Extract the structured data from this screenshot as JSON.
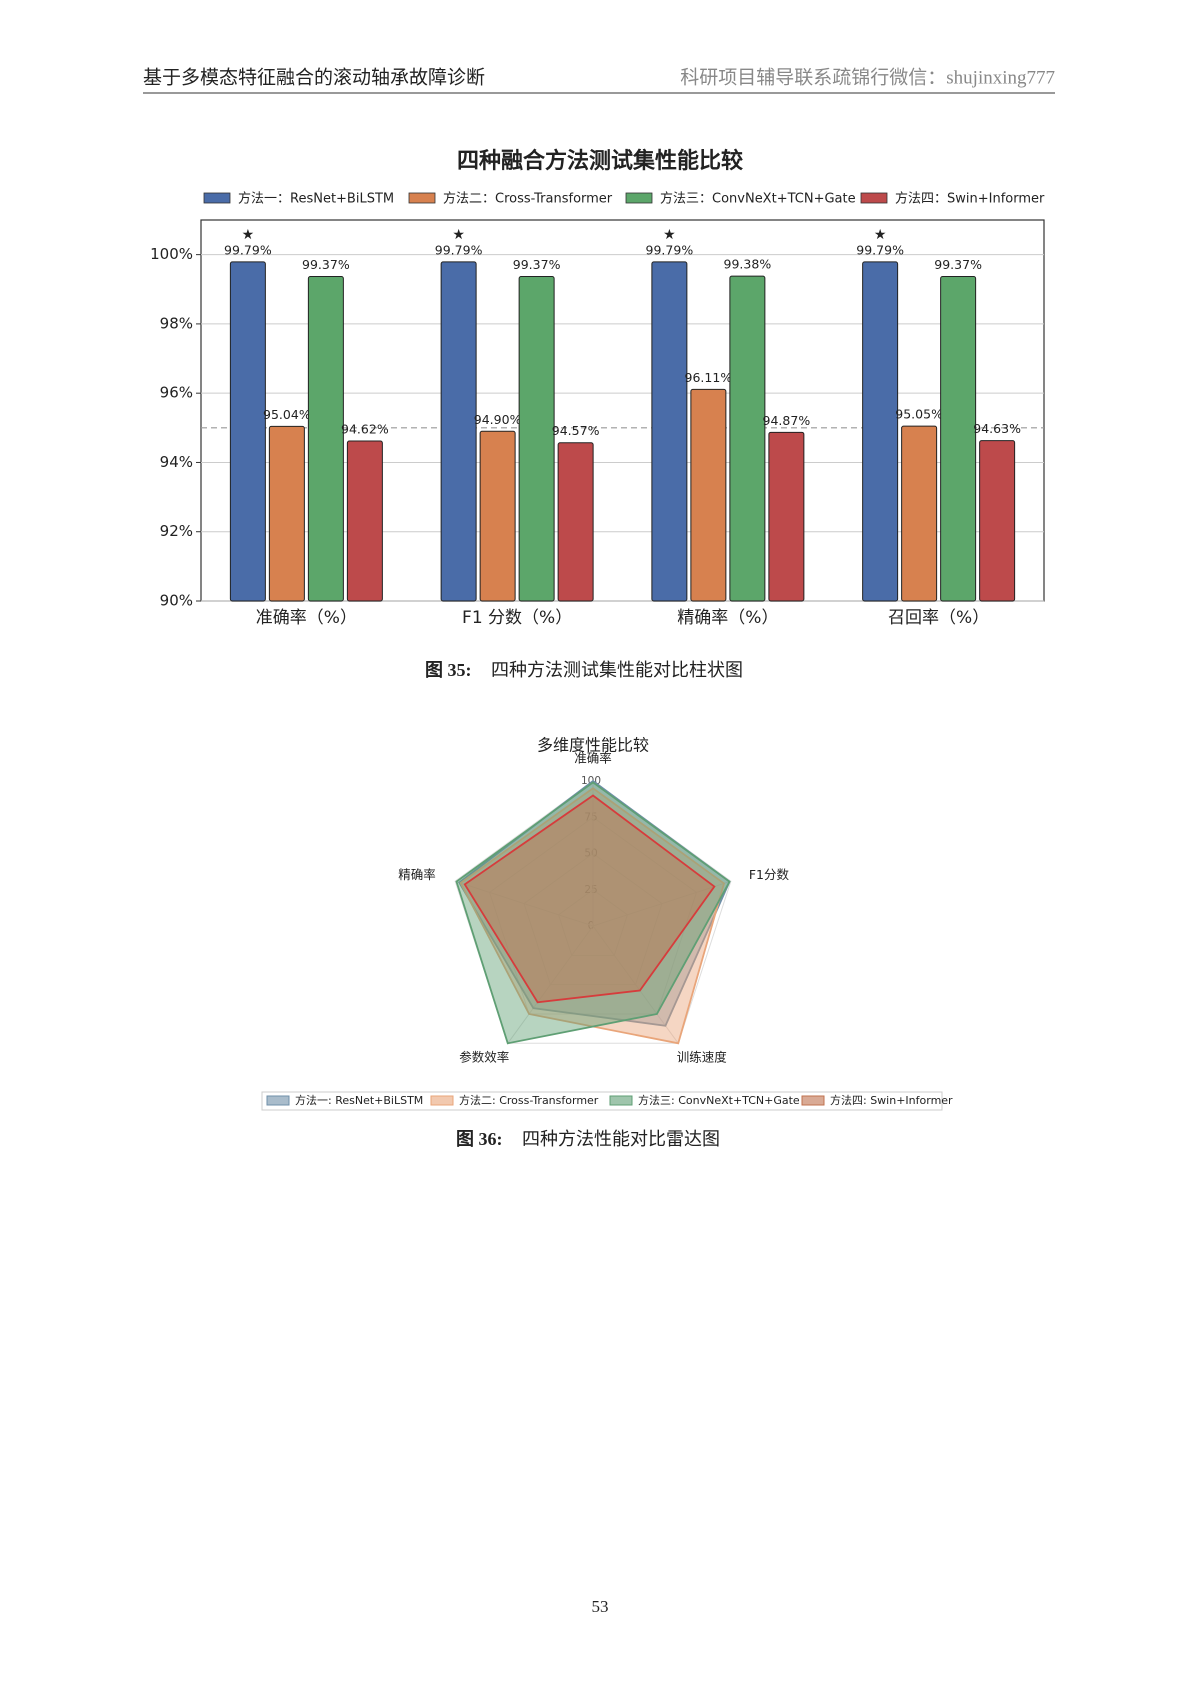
{
  "header": {
    "left": "基于多模态特征融合的滚动轴承故障诊断",
    "right": "科研项目辅导联系疏锦行微信：shujinxing777"
  },
  "chart_data": [
    {
      "type": "bar",
      "title": "四种融合方法测试集性能比较",
      "categories": [
        "准确率（%）",
        "F1 分数（%）",
        "精确率（%）",
        "召回率（%）"
      ],
      "series": [
        {
          "name": "方法一：ResNet+BiLSTM",
          "color": "#4a6ca8",
          "values": [
            99.79,
            99.79,
            99.79,
            99.79
          ],
          "value_labels": [
            "99.79%",
            "99.79%",
            "99.79%",
            "99.79%"
          ],
          "marker": "★"
        },
        {
          "name": "方法二：Cross-Transformer",
          "color": "#d7814f",
          "values": [
            95.04,
            94.9,
            96.11,
            95.05
          ],
          "value_labels": [
            "95.04%",
            "94.90%",
            "96.11%",
            "95.05%"
          ]
        },
        {
          "name": "方法三：ConvNeXt+TCN+Gate",
          "color": "#5ca66a",
          "values": [
            99.37,
            99.37,
            99.38,
            99.37
          ],
          "value_labels": [
            "99.37%",
            "99.37%",
            "99.38%",
            "99.37%"
          ]
        },
        {
          "name": "方法四：Swin+Informer",
          "color": "#bd4a4b",
          "values": [
            94.62,
            94.57,
            94.87,
            94.63
          ],
          "value_labels": [
            "94.62%",
            "94.57%",
            "94.87%",
            "94.63%"
          ]
        }
      ],
      "ylim": [
        90,
        101
      ],
      "yticks": [
        {
          "value": 90,
          "label": "90%"
        },
        {
          "value": 92,
          "label": "92%"
        },
        {
          "value": 94,
          "label": "94%"
        },
        {
          "value": 96,
          "label": "96%"
        },
        {
          "value": 98,
          "label": "98%"
        },
        {
          "value": 100,
          "label": "100%"
        }
      ],
      "reference_line": 95,
      "grid": true
    },
    {
      "type": "radar",
      "title": "多维度性能比较",
      "axes": [
        "准确率",
        "F1分数",
        "训练速度",
        "参数效率",
        "精确率"
      ],
      "rlim": [
        0,
        100
      ],
      "rticks": [
        0,
        25,
        50,
        75,
        100
      ],
      "series": [
        {
          "name": "方法一: ResNet+BiLSTM",
          "color": "#6f8fa8",
          "values": [
            100,
            99,
            85,
            70,
            97
          ]
        },
        {
          "name": "方法二: Cross-Transformer",
          "color": "#e9a57a",
          "values": [
            95,
            95,
            100,
            75,
            96
          ]
        },
        {
          "name": "方法三: ConvNeXt+TCN+Gate",
          "color": "#5f9f74",
          "values": [
            99,
            99,
            75,
            100,
            99
          ]
        },
        {
          "name": "方法四: Swin+Informer",
          "color": "#c0714e",
          "values": [
            90,
            88,
            55,
            65,
            93
          ]
        }
      ]
    }
  ],
  "captions": [
    {
      "label": "图 35:",
      "text": "四种方法测试集性能对比柱状图"
    },
    {
      "label": "图 36:",
      "text": "四种方法性能对比雷达图"
    }
  ],
  "page_number": "53"
}
